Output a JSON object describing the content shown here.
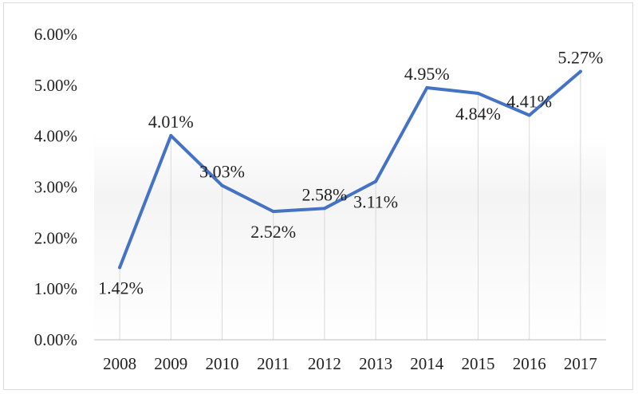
{
  "chart_data": {
    "type": "line",
    "title": "",
    "xlabel": "",
    "ylabel": "",
    "categories": [
      "2008",
      "2009",
      "2010",
      "2011",
      "2012",
      "2013",
      "2014",
      "2015",
      "2016",
      "2017"
    ],
    "series": [
      {
        "values": [
          1.42,
          4.01,
          3.03,
          2.52,
          2.58,
          3.11,
          4.95,
          4.84,
          4.41,
          5.27
        ],
        "labels": [
          "1.42%",
          "4.01%",
          "3.03%",
          "2.52%",
          "2.58%",
          "3.11%",
          "4.95%",
          "4.84%",
          "4.41%",
          "5.27%"
        ],
        "color": "#4472c4"
      }
    ],
    "ylim": [
      0,
      6
    ],
    "y_ticks": [
      "0.00%",
      "1.00%",
      "2.00%",
      "3.00%",
      "4.00%",
      "5.00%",
      "6.00%"
    ],
    "grid": "vertical",
    "legend": "none"
  }
}
